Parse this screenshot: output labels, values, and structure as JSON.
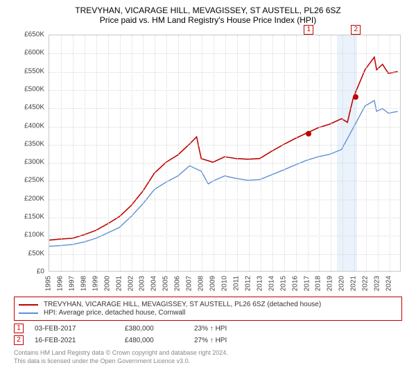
{
  "title": {
    "main": "TREVYHAN, VICARAGE HILL, MEVAGISSEY, ST AUSTELL, PL26 6SZ",
    "sub": "Price paid vs. HM Land Registry's House Price Index (HPI)"
  },
  "chart": {
    "type": "line",
    "background_color": "#ffffff",
    "grid_color": "#d8d8d8",
    "border_color": "#c8c8c8",
    "ylim": [
      0,
      650000
    ],
    "ytick_step": 50000,
    "y_ticks": [
      "£0",
      "£50K",
      "£100K",
      "£150K",
      "£200K",
      "£250K",
      "£300K",
      "£350K",
      "£400K",
      "£450K",
      "£500K",
      "£550K",
      "£600K",
      "£650K"
    ],
    "xlim": [
      1995,
      2025
    ],
    "x_ticks": [
      1995,
      1996,
      1997,
      1998,
      1999,
      2000,
      2001,
      2002,
      2003,
      2004,
      2005,
      2006,
      2007,
      2008,
      2009,
      2010,
      2011,
      2012,
      2013,
      2014,
      2015,
      2016,
      2017,
      2018,
      2019,
      2020,
      2021,
      2022,
      2023,
      2024
    ],
    "highlight_band": {
      "start": 2019.5,
      "end": 2021.2,
      "color": "#eaf2fb"
    },
    "series": [
      {
        "id": "property",
        "label": "TREVYHAN, VICARAGE HILL, MEVAGISSEY, ST AUSTELL, PL26 6SZ (detached house)",
        "color": "#c00000",
        "line_width": 1.6,
        "data": [
          [
            1995,
            85000
          ],
          [
            1996,
            88000
          ],
          [
            1997,
            90000
          ],
          [
            1998,
            100000
          ],
          [
            1999,
            112000
          ],
          [
            2000,
            130000
          ],
          [
            2001,
            150000
          ],
          [
            2002,
            180000
          ],
          [
            2003,
            220000
          ],
          [
            2004,
            270000
          ],
          [
            2005,
            300000
          ],
          [
            2006,
            320000
          ],
          [
            2007,
            350000
          ],
          [
            2007.6,
            370000
          ],
          [
            2008,
            310000
          ],
          [
            2009,
            300000
          ],
          [
            2010,
            315000
          ],
          [
            2011,
            310000
          ],
          [
            2012,
            308000
          ],
          [
            2013,
            310000
          ],
          [
            2014,
            330000
          ],
          [
            2015,
            348000
          ],
          [
            2016,
            365000
          ],
          [
            2017,
            380000
          ],
          [
            2018,
            395000
          ],
          [
            2019,
            405000
          ],
          [
            2020,
            420000
          ],
          [
            2020.5,
            410000
          ],
          [
            2021,
            478000
          ],
          [
            2022,
            555000
          ],
          [
            2022.8,
            590000
          ],
          [
            2023,
            555000
          ],
          [
            2023.5,
            570000
          ],
          [
            2024,
            545000
          ],
          [
            2024.8,
            550000
          ]
        ]
      },
      {
        "id": "hpi",
        "label": "HPI: Average price, detached house, Cornwall",
        "color": "#5b8fd6",
        "line_width": 1.4,
        "data": [
          [
            1995,
            68000
          ],
          [
            1996,
            70000
          ],
          [
            1997,
            73000
          ],
          [
            1998,
            80000
          ],
          [
            1999,
            90000
          ],
          [
            2000,
            105000
          ],
          [
            2001,
            120000
          ],
          [
            2002,
            150000
          ],
          [
            2003,
            185000
          ],
          [
            2004,
            225000
          ],
          [
            2005,
            245000
          ],
          [
            2006,
            262000
          ],
          [
            2007,
            290000
          ],
          [
            2008,
            275000
          ],
          [
            2008.6,
            240000
          ],
          [
            2009,
            248000
          ],
          [
            2010,
            262000
          ],
          [
            2011,
            255000
          ],
          [
            2012,
            250000
          ],
          [
            2013,
            252000
          ],
          [
            2014,
            265000
          ],
          [
            2015,
            278000
          ],
          [
            2016,
            292000
          ],
          [
            2017,
            305000
          ],
          [
            2018,
            315000
          ],
          [
            2019,
            322000
          ],
          [
            2020,
            335000
          ],
          [
            2021,
            395000
          ],
          [
            2022,
            455000
          ],
          [
            2022.8,
            470000
          ],
          [
            2023,
            440000
          ],
          [
            2023.5,
            448000
          ],
          [
            2024,
            435000
          ],
          [
            2024.8,
            440000
          ]
        ]
      }
    ],
    "sale_markers": [
      {
        "n": "1",
        "x": 2017.1,
        "y": 380000,
        "label_y_offset": -200000
      },
      {
        "n": "2",
        "x": 2021.12,
        "y": 480000,
        "label_y_offset": -200000
      }
    ],
    "axis_fontsize": 10
  },
  "legend": {
    "border_color": "#c00000",
    "items": [
      {
        "color": "#c00000",
        "label": "TREVYHAN, VICARAGE HILL, MEVAGISSEY, ST AUSTELL, PL26 6SZ (detached house)"
      },
      {
        "color": "#5b8fd6",
        "label": "HPI: Average price, detached house, Cornwall"
      }
    ]
  },
  "transactions": [
    {
      "n": "1",
      "date": "03-FEB-2017",
      "price": "£380,000",
      "delta": "23% ↑ HPI"
    },
    {
      "n": "2",
      "date": "16-FEB-2021",
      "price": "£480,000",
      "delta": "27% ↑ HPI"
    }
  ],
  "footer": {
    "line1": "Contains HM Land Registry data © Crown copyright and database right 2024.",
    "line2": "This data is licensed under the Open Government Licence v3.0."
  }
}
